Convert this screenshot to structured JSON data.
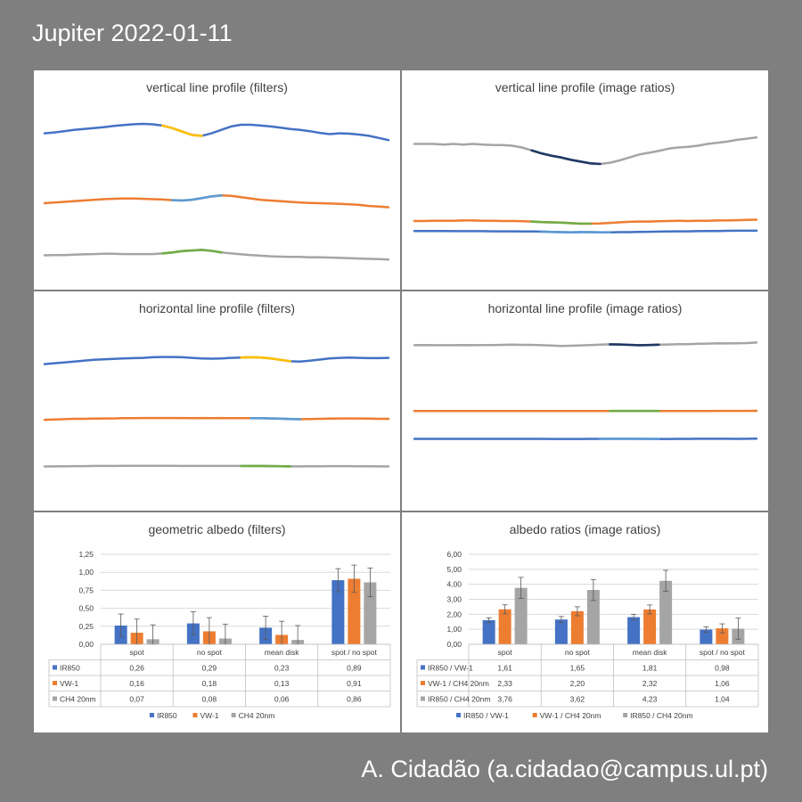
{
  "title": "Jupiter 2022-01-11",
  "credit": "A. Cidadão (a.cidadao@campus.ul.pt)",
  "colors": {
    "blue": "#4472c4",
    "orange": "#ed7d31",
    "gray": "#a5a5a5",
    "yellow": "#ffc000",
    "lightblue": "#5b9bd5",
    "green": "#70ad47",
    "navy": "#203864"
  },
  "panels": {
    "p1": {
      "title": "vertical line profile (filters)"
    },
    "p2": {
      "title": "vertical line profile (image ratios)"
    },
    "p3": {
      "title": "horizontal line profile (filters)"
    },
    "p4": {
      "title": "horizontal line profile (image ratios)"
    },
    "p5": {
      "title": "geometric albedo (filters)"
    },
    "p6": {
      "title": "albedo ratios (image ratios)"
    }
  },
  "chart_data": [
    {
      "id": "p1",
      "type": "line",
      "title": "vertical line profile (filters)",
      "axes": "none",
      "series": [
        {
          "color": "blue",
          "highlight": "yellow",
          "highlight_range": [
            0.35,
            0.47
          ],
          "values": [
            0.78,
            0.8,
            0.83,
            0.86,
            0.88,
            0.9,
            0.92,
            0.95,
            0.97,
            0.99,
            1.0,
            0.99,
            0.96,
            0.9,
            0.82,
            0.74,
            0.72,
            0.78,
            0.86,
            0.94,
            0.98,
            0.98,
            0.96,
            0.94,
            0.91,
            0.88,
            0.86,
            0.83,
            0.79,
            0.76,
            0.78,
            0.77,
            0.75,
            0.72,
            0.67,
            0.62
          ]
        },
        {
          "color": "orange",
          "highlight": "lightblue",
          "highlight_range": [
            0.38,
            0.5
          ],
          "values": [
            0.42,
            0.44,
            0.46,
            0.48,
            0.5,
            0.52,
            0.54,
            0.55,
            0.56,
            0.56,
            0.55,
            0.54,
            0.53,
            0.51,
            0.5,
            0.52,
            0.57,
            0.62,
            0.65,
            0.64,
            0.6,
            0.56,
            0.52,
            0.5,
            0.48,
            0.46,
            0.44,
            0.43,
            0.42,
            0.41,
            0.4,
            0.39,
            0.37,
            0.34,
            0.32,
            0.3
          ]
        },
        {
          "color": "gray",
          "highlight": "green",
          "highlight_range": [
            0.35,
            0.5
          ],
          "values": [
            0.18,
            0.19,
            0.19,
            0.2,
            0.21,
            0.22,
            0.23,
            0.23,
            0.22,
            0.22,
            0.22,
            0.22,
            0.24,
            0.27,
            0.31,
            0.33,
            0.35,
            0.32,
            0.27,
            0.24,
            0.21,
            0.19,
            0.17,
            0.15,
            0.14,
            0.13,
            0.13,
            0.12,
            0.12,
            0.11,
            0.1,
            0.09,
            0.08,
            0.07,
            0.06,
            0.05
          ]
        }
      ]
    },
    {
      "id": "p2",
      "type": "line",
      "title": "vertical line profile (image ratios)",
      "axes": "none",
      "series": [
        {
          "color": "gray",
          "highlight": "navy",
          "highlight_range": [
            0.35,
            0.55
          ],
          "values": [
            0.78,
            0.78,
            0.78,
            0.77,
            0.78,
            0.77,
            0.78,
            0.77,
            0.76,
            0.76,
            0.75,
            0.72,
            0.67,
            0.62,
            0.58,
            0.55,
            0.51,
            0.48,
            0.45,
            0.44,
            0.46,
            0.5,
            0.55,
            0.6,
            0.63,
            0.66,
            0.7,
            0.72,
            0.73,
            0.75,
            0.78,
            0.8,
            0.82,
            0.85,
            0.87,
            0.89
          ]
        },
        {
          "color": "orange",
          "highlight": "green",
          "highlight_range": [
            0.35,
            0.5
          ],
          "values": [
            0.3,
            0.3,
            0.31,
            0.31,
            0.31,
            0.32,
            0.32,
            0.31,
            0.31,
            0.3,
            0.3,
            0.29,
            0.28,
            0.26,
            0.25,
            0.24,
            0.22,
            0.2,
            0.2,
            0.21,
            0.23,
            0.25,
            0.27,
            0.28,
            0.28,
            0.29,
            0.3,
            0.31,
            0.3,
            0.31,
            0.31,
            0.32,
            0.32,
            0.33,
            0.34,
            0.35
          ]
        },
        {
          "color": "blue",
          "highlight": "lightblue",
          "highlight_range": [
            0.38,
            0.58
          ],
          "values": [
            0.21,
            0.21,
            0.21,
            0.21,
            0.2,
            0.2,
            0.2,
            0.2,
            0.19,
            0.19,
            0.19,
            0.18,
            0.18,
            0.17,
            0.15,
            0.14,
            0.13,
            0.14,
            0.14,
            0.13,
            0.13,
            0.14,
            0.14,
            0.15,
            0.16,
            0.17,
            0.18,
            0.19,
            0.19,
            0.2,
            0.21,
            0.21,
            0.22,
            0.23,
            0.23,
            0.23
          ]
        }
      ]
    },
    {
      "id": "p3",
      "type": "line",
      "title": "horizontal line profile (filters)",
      "axes": "none",
      "series": [
        {
          "color": "blue",
          "highlight": "yellow",
          "highlight_range": [
            0.58,
            0.72
          ],
          "values": [
            0.7,
            0.73,
            0.76,
            0.79,
            0.82,
            0.85,
            0.87,
            0.88,
            0.9,
            0.91,
            0.92,
            0.94,
            0.95,
            0.95,
            0.94,
            0.92,
            0.9,
            0.89,
            0.9,
            0.92,
            0.93,
            0.94,
            0.93,
            0.9,
            0.85,
            0.8,
            0.79,
            0.82,
            0.86,
            0.9,
            0.92,
            0.93,
            0.92,
            0.91,
            0.91,
            0.92
          ]
        },
        {
          "color": "orange",
          "highlight": "lightblue",
          "highlight_range": [
            0.6,
            0.74
          ],
          "values": [
            0.45,
            0.47,
            0.48,
            0.5,
            0.5,
            0.51,
            0.52,
            0.52,
            0.53,
            0.53,
            0.54,
            0.54,
            0.54,
            0.54,
            0.54,
            0.53,
            0.54,
            0.53,
            0.54,
            0.53,
            0.53,
            0.53,
            0.53,
            0.52,
            0.51,
            0.49,
            0.48,
            0.49,
            0.5,
            0.51,
            0.52,
            0.52,
            0.52,
            0.51,
            0.5,
            0.5
          ]
        },
        {
          "color": "gray",
          "highlight": "green",
          "highlight_range": [
            0.58,
            0.72
          ],
          "values": [
            0.25,
            0.26,
            0.27,
            0.28,
            0.28,
            0.29,
            0.29,
            0.29,
            0.3,
            0.3,
            0.3,
            0.3,
            0.3,
            0.3,
            0.29,
            0.29,
            0.29,
            0.29,
            0.29,
            0.29,
            0.29,
            0.29,
            0.29,
            0.28,
            0.27,
            0.26,
            0.26,
            0.27,
            0.27,
            0.28,
            0.28,
            0.28,
            0.27,
            0.27,
            0.26,
            0.26
          ]
        }
      ]
    },
    {
      "id": "p4",
      "type": "line",
      "title": "horizontal line profile (image ratios)",
      "axes": "none",
      "series": [
        {
          "color": "gray",
          "highlight": "navy",
          "highlight_range": [
            0.58,
            0.72
          ],
          "values": [
            0.78,
            0.79,
            0.78,
            0.78,
            0.78,
            0.79,
            0.78,
            0.79,
            0.79,
            0.8,
            0.81,
            0.8,
            0.8,
            0.78,
            0.76,
            0.74,
            0.75,
            0.77,
            0.79,
            0.81,
            0.83,
            0.82,
            0.8,
            0.78,
            0.79,
            0.81,
            0.82,
            0.84,
            0.84,
            0.86,
            0.87,
            0.89,
            0.88,
            0.89,
            0.9,
            0.93
          ]
        },
        {
          "color": "orange",
          "highlight": "green",
          "highlight_range": [
            0.58,
            0.72
          ],
          "values": [
            0.46,
            0.46,
            0.46,
            0.46,
            0.46,
            0.46,
            0.46,
            0.46,
            0.46,
            0.47,
            0.47,
            0.47,
            0.47,
            0.46,
            0.46,
            0.46,
            0.46,
            0.46,
            0.47,
            0.47,
            0.47,
            0.47,
            0.48,
            0.48,
            0.47,
            0.47,
            0.47,
            0.48,
            0.48,
            0.48,
            0.48,
            0.49,
            0.49,
            0.49,
            0.49,
            0.5
          ]
        },
        {
          "color": "blue",
          "highlight": "lightblue",
          "highlight_range": [
            0.55,
            0.72
          ],
          "values": [
            0.25,
            0.25,
            0.25,
            0.25,
            0.25,
            0.25,
            0.25,
            0.25,
            0.25,
            0.25,
            0.25,
            0.25,
            0.25,
            0.25,
            0.24,
            0.24,
            0.24,
            0.24,
            0.25,
            0.25,
            0.26,
            0.26,
            0.26,
            0.25,
            0.25,
            0.24,
            0.24,
            0.25,
            0.25,
            0.26,
            0.26,
            0.26,
            0.26,
            0.25,
            0.26,
            0.27
          ]
        }
      ]
    },
    {
      "id": "p5",
      "type": "bar",
      "title": "geometric albedo (filters)",
      "ylim": [
        0,
        1.25
      ],
      "ticks": [
        "0,00",
        "0,25",
        "0,50",
        "0,75",
        "1,00",
        "1,25"
      ],
      "categories": [
        "spot",
        "no spot",
        "mean disk",
        "spot / no spot"
      ],
      "series": [
        {
          "name": "IR850",
          "color": "blue",
          "values": [
            0.26,
            0.29,
            0.23,
            0.89
          ],
          "err": [
            0.16,
            0.16,
            0.16,
            0.16
          ],
          "labels": [
            "0,26",
            "0,29",
            "0,23",
            "0,89"
          ]
        },
        {
          "name": "VW-1",
          "color": "orange",
          "values": [
            0.16,
            0.18,
            0.13,
            0.91
          ],
          "err": [
            0.19,
            0.19,
            0.19,
            0.19
          ],
          "labels": [
            "0,16",
            "0,18",
            "0,13",
            "0,91"
          ]
        },
        {
          "name": "CH4 20nm",
          "color": "gray",
          "values": [
            0.07,
            0.08,
            0.06,
            0.86
          ],
          "err": [
            0.2,
            0.2,
            0.2,
            0.2
          ],
          "labels": [
            "0,07",
            "0,08",
            "0,06",
            "0,86"
          ]
        }
      ]
    },
    {
      "id": "p6",
      "type": "bar",
      "title": "albedo ratios (image ratios)",
      "ylim": [
        0,
        6
      ],
      "ticks": [
        "0,00",
        "1,00",
        "2,00",
        "3,00",
        "4,00",
        "5,00",
        "6,00"
      ],
      "categories": [
        "spot",
        "no spot",
        "mean disk",
        "spot / no spot"
      ],
      "series": [
        {
          "name": "IR850 / VW-1",
          "color": "blue",
          "values": [
            1.61,
            1.65,
            1.81,
            0.98
          ],
          "err": [
            0.15,
            0.2,
            0.18,
            0.18
          ],
          "labels": [
            "1,61",
            "1,65",
            "1,81",
            "0,98"
          ]
        },
        {
          "name": "VW-1 / CH4 20nm",
          "color": "orange",
          "values": [
            2.33,
            2.2,
            2.32,
            1.06
          ],
          "err": [
            0.3,
            0.3,
            0.3,
            0.3
          ],
          "labels": [
            "2,33",
            "2,20",
            "2,32",
            "1,06"
          ]
        },
        {
          "name": "IR850 / CH4 20nm",
          "color": "gray",
          "values": [
            3.76,
            3.62,
            4.23,
            1.04
          ],
          "err": [
            0.7,
            0.7,
            0.7,
            0.7
          ],
          "labels": [
            "3,76",
            "3,62",
            "4,23",
            "1,04"
          ]
        }
      ]
    }
  ]
}
